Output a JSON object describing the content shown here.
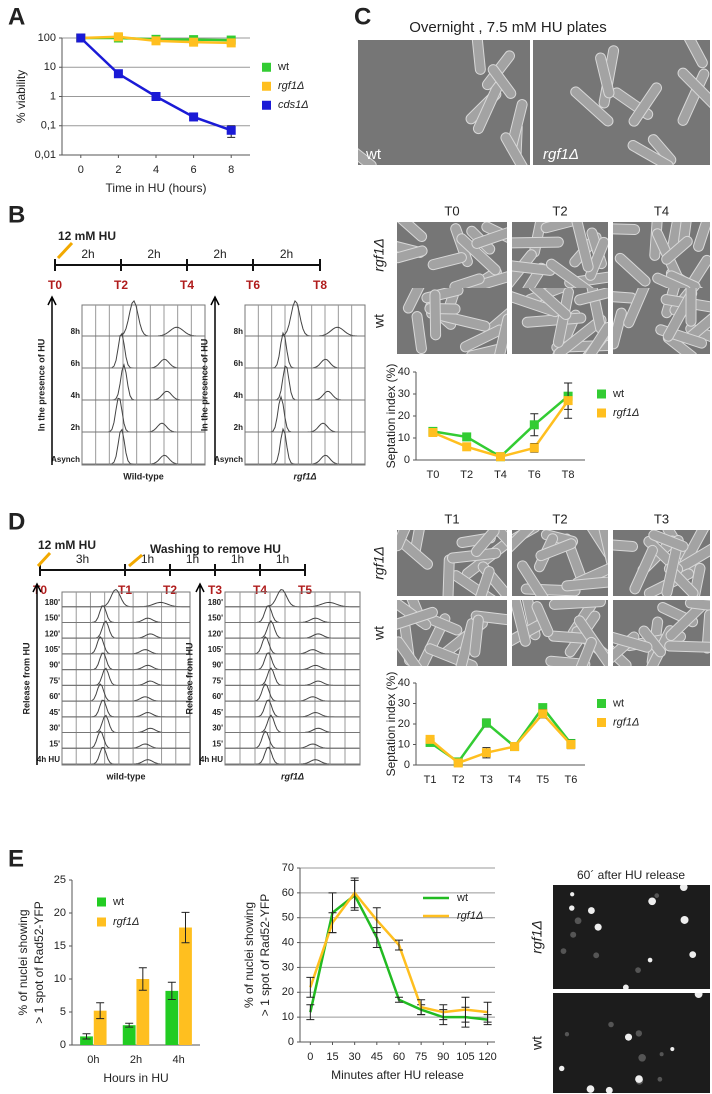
{
  "panel_labels": [
    "A",
    "B",
    "C",
    "D",
    "E"
  ],
  "chart_data": [
    {
      "type": "line",
      "x": [
        0,
        2,
        4,
        6,
        8
      ],
      "xlim": [
        -1,
        9
      ],
      "xticks": [
        0,
        2,
        4,
        6,
        8
      ],
      "ylim": [
        0.01,
        100
      ],
      "log_y": true,
      "yticks": [
        {
          "value": 0.01,
          "label": "0,01"
        },
        {
          "value": 0.1,
          "label": "0,1"
        },
        1,
        10,
        100
      ],
      "grid": true,
      "xlabel": "Time in HU (hours)",
      "ylabel": "% viability",
      "legend": "right",
      "markers": "square",
      "series": [
        {
          "name": "wt",
          "color": "#33cc33",
          "values": [
            100,
            100,
            90,
            88,
            85
          ]
        },
        {
          "name": "rgf1Δ",
          "color": "#ffbf1f",
          "values": [
            100,
            110,
            80,
            72,
            68
          ]
        },
        {
          "name": "cds1Δ",
          "color": "#1a1ad6",
          "values": [
            100,
            6,
            1,
            0.2,
            0.07
          ],
          "errors": [
            null,
            null,
            null,
            null,
            0.03
          ]
        }
      ]
    },
    {
      "type": "line",
      "categories": [
        "T0",
        "T2",
        "T4",
        "T6",
        "T8"
      ],
      "ylim": [
        0,
        40
      ],
      "yticks": [
        0,
        10,
        20,
        30,
        40
      ],
      "ylabel": "Septation index (%)",
      "legend": "right",
      "markers": "square",
      "series": [
        {
          "name": "wt",
          "color": "#33cc33",
          "values": [
            13,
            10.5,
            1.5,
            16,
            29
          ],
          "errors": [
            1,
            1,
            0.5,
            5,
            6
          ]
        },
        {
          "name": "rgf1Δ",
          "color": "#ffbf1f",
          "values": [
            12.5,
            6,
            1.5,
            5.5,
            27
          ],
          "errors": [
            1,
            1,
            0.5,
            2,
            8
          ]
        }
      ]
    },
    {
      "type": "line",
      "categories": [
        "T1",
        "T2",
        "T3",
        "T4",
        "T5",
        "T6"
      ],
      "ylim": [
        0,
        40
      ],
      "yticks": [
        0,
        10,
        20,
        30,
        40
      ],
      "ylabel": "Septation index (%)",
      "legend": "right",
      "markers": "square",
      "series": [
        {
          "name": "wt",
          "color": "#33cc33",
          "values": [
            11,
            1.5,
            20.5,
            9,
            28,
            10.5
          ],
          "errors": [
            1,
            0.5,
            2,
            0.5,
            1.5,
            1.5
          ]
        },
        {
          "name": "rgf1Δ",
          "color": "#ffbf1f",
          "values": [
            12.5,
            1,
            6,
            9,
            25,
            10
          ],
          "errors": [
            1.5,
            0.5,
            2.5,
            0.5,
            2,
            2
          ]
        }
      ]
    },
    {
      "type": "bar",
      "categories": [
        "0h",
        "2h",
        "4h"
      ],
      "ylim": [
        0,
        25
      ],
      "yticks": [
        0,
        5,
        10,
        15,
        20,
        25
      ],
      "xlabel": "Hours in HU",
      "ylabel": [
        "% of nuclei showing",
        "> 1 spot of Rad52-YFP"
      ],
      "legend": "top-left",
      "series": [
        {
          "name": "wt",
          "color": "#22cc22",
          "values": [
            1.3,
            3,
            8.2
          ],
          "errors": [
            0.4,
            0.3,
            1.3
          ]
        },
        {
          "name": "rgf1Δ",
          "color": "#ffbf1f",
          "values": [
            5.2,
            10,
            17.8
          ],
          "errors": [
            1.2,
            1.7,
            2.3
          ]
        }
      ]
    },
    {
      "type": "line",
      "x": [
        0,
        15,
        30,
        45,
        60,
        75,
        90,
        105,
        120
      ],
      "xlim": [
        -7,
        125
      ],
      "xticks": [
        0,
        15,
        30,
        45,
        60,
        75,
        90,
        105,
        120
      ],
      "ylim": [
        0,
        70
      ],
      "yticks": [
        0,
        10,
        20,
        30,
        40,
        50,
        60,
        70
      ],
      "grid": true,
      "xlabel": "Minutes after HU release",
      "ylabel": [
        "% of nuclei showing",
        "> 1 spot of Rad52-YFP"
      ],
      "legend": "top-right",
      "series": [
        {
          "name": "wt",
          "color": "#22bb22",
          "values": [
            12,
            52,
            59,
            42,
            17,
            13,
            10,
            10,
            9
          ],
          "errors": [
            3,
            8,
            6,
            4,
            1,
            2,
            3,
            4,
            2
          ]
        },
        {
          "name": "rgf1Δ",
          "color": "#ffbf1f",
          "values": [
            22,
            48,
            60,
            49,
            39,
            14,
            12,
            13,
            12
          ],
          "errors": [
            4,
            4,
            6,
            5,
            2,
            3,
            3,
            5,
            4
          ]
        }
      ]
    }
  ],
  "panel_c": {
    "title": "Overnight , 7.5 mM HU plates",
    "images": [
      "wt",
      "rgf1Δ"
    ]
  },
  "timeline_b": {
    "labels": [
      "12 mM HU"
    ],
    "intervals": [
      "2h",
      "2h",
      "2h",
      "2h"
    ],
    "points": [
      "T0",
      "T2",
      "T4",
      "T6",
      "T8"
    ]
  },
  "flow_b": {
    "axis_label": "In the presence of HU",
    "rows": [
      "8h",
      "6h",
      "4h",
      "2h",
      "Asynch"
    ],
    "samples": [
      "Wild-type",
      "rgf1Δ"
    ]
  },
  "micro_b": {
    "columns": [
      "T0",
      "T2",
      "T4"
    ],
    "rows": [
      "rgf1Δ",
      "wt"
    ]
  },
  "timeline_d": {
    "labels": [
      "12 mM HU",
      "Washing to remove HU"
    ],
    "intervals": [
      "3h",
      "1h",
      "1h",
      "1h",
      "1h"
    ],
    "points": [
      "T0",
      "T1",
      "T2",
      "T3",
      "T4",
      "T5"
    ]
  },
  "flow_d": {
    "axis_label": "Release from HU",
    "rows": [
      "180'",
      "150'",
      "120'",
      "105'",
      "90'",
      "75'",
      "60'",
      "45'",
      "30'",
      "15'",
      "4h HU"
    ],
    "samples": [
      "wild-type",
      "rgf1Δ"
    ]
  },
  "micro_d": {
    "columns": [
      "T1",
      "T2",
      "T3"
    ],
    "rows": [
      "rgf1Δ",
      "wt"
    ]
  },
  "image_e": {
    "title": "60´ after HU release",
    "rows": [
      "rgf1Δ",
      "wt"
    ]
  }
}
